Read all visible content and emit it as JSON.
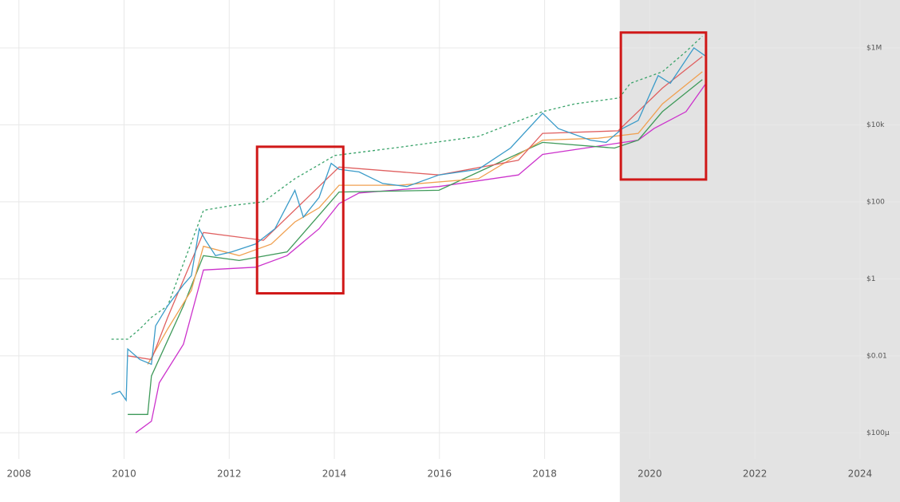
{
  "chart_data": {
    "type": "line",
    "log_y": true,
    "grid": true,
    "xlim": [
      2007.64,
      2024.76
    ],
    "xticks": [
      2008,
      2010,
      2012,
      2014,
      2016,
      2018,
      2020,
      2022,
      2024
    ],
    "ylim": [
      2.1e-05,
      17500000
    ],
    "yticks": [
      {
        "value": 0.0001,
        "label": "$100µ"
      },
      {
        "value": 0.01,
        "label": "$0.01"
      },
      {
        "value": 1,
        "label": "$1"
      },
      {
        "value": 100,
        "label": "$100"
      },
      {
        "value": 10000,
        "label": "$10k"
      },
      {
        "value": 1000000,
        "label": "$1M"
      }
    ],
    "shaded_region": {
      "x": [
        2019.43,
        2024.76
      ],
      "color": "#e3e3e3"
    },
    "highlight_boxes": [
      {
        "x": [
          2012.53,
          2014.17
        ],
        "y": [
          0.42,
          2700
        ],
        "color": "#d01818"
      },
      {
        "x": [
          2019.45,
          2021.07
        ],
        "y": [
          380,
          2500000
        ],
        "color": "#d01818"
      }
    ],
    "series": [
      {
        "color": "#3aa36a",
        "dashed": true,
        "x": [
          2009.76,
          2010.07,
          2010.3,
          2010.52,
          2010.83,
          2011.13,
          2011.51,
          2012.04,
          2012.65,
          2013.25,
          2014.01,
          2015.23,
          2016.74,
          2017.96,
          2018.57,
          2019.42,
          2019.63,
          2020.24,
          2020.69,
          2021.0
        ],
        "values": [
          0.027,
          0.027,
          0.05,
          0.1,
          0.2,
          2.5,
          60,
          80,
          100,
          400,
          1600,
          2600,
          5000,
          22000,
          35000,
          50000,
          120000,
          240000,
          800000,
          2000000
        ]
      },
      {
        "color": "#cc33cc",
        "dashed": false,
        "x": [
          2010.22,
          2010.52,
          2010.67,
          2011.13,
          2011.51,
          2012.5,
          2013.1,
          2013.71,
          2014.09,
          2014.47,
          2015.99,
          2017.5,
          2017.96,
          2019.17,
          2019.78,
          2020.08,
          2020.69,
          2021.07
        ],
        "values": [
          0.0001,
          0.0002,
          0.002,
          0.02,
          1.7,
          2,
          4,
          20,
          90,
          170,
          250,
          500,
          1700,
          3000,
          4000,
          8000,
          22000,
          120000
        ]
      },
      {
        "color": "#3f9a5a",
        "dashed": false,
        "x": [
          2010.07,
          2010.45,
          2010.52,
          2011.13,
          2011.51,
          2012.19,
          2013.1,
          2013.71,
          2014.09,
          2015.99,
          2017.96,
          2019.33,
          2019.78,
          2020.24,
          2021.0
        ],
        "values": [
          0.0003,
          0.0003,
          0.003,
          0.2,
          4,
          3,
          5,
          45,
          180,
          200,
          3500,
          2500,
          4000,
          22000,
          150000
        ]
      },
      {
        "color": "#f0a050",
        "dashed": false,
        "x": [
          2010.45,
          2010.83,
          2011.28,
          2011.51,
          2012.19,
          2012.8,
          2013.25,
          2013.71,
          2014.09,
          2015.23,
          2016.74,
          2017.96,
          2019.02,
          2019.78,
          2020.24,
          2021.0
        ],
        "values": [
          0.006,
          0.05,
          0.5,
          7,
          4,
          8,
          30,
          70,
          270,
          270,
          400,
          4000,
          4500,
          6000,
          35000,
          240000
        ]
      },
      {
        "color": "#e06060",
        "dashed": false,
        "x": [
          2010.07,
          2010.52,
          2010.83,
          2011.51,
          2012.65,
          2014.09,
          2015.99,
          2017.5,
          2017.96,
          2019.4,
          2020.24,
          2021.0
        ],
        "values": [
          0.01,
          0.008,
          0.1,
          16,
          10,
          800,
          500,
          1200,
          6000,
          7000,
          90000,
          600000
        ]
      },
      {
        "color": "#3a9bc9",
        "dashed": false,
        "x": [
          2009.76,
          2009.92,
          2010.04,
          2010.07,
          2010.3,
          2010.52,
          2010.6,
          2010.83,
          2011.13,
          2011.28,
          2011.43,
          2011.55,
          2011.74,
          2012.04,
          2012.5,
          2012.87,
          2013.25,
          2013.41,
          2013.71,
          2013.94,
          2014.09,
          2014.47,
          2014.92,
          2015.38,
          2015.99,
          2016.74,
          2017.35,
          2017.96,
          2018.26,
          2018.87,
          2019.17,
          2019.48,
          2019.78,
          2020.16,
          2020.39,
          2020.84,
          2021.07
        ],
        "values": [
          0.001,
          0.0012,
          0.0007,
          0.015,
          0.008,
          0.006,
          0.06,
          0.2,
          0.7,
          1.2,
          20,
          10,
          4,
          5,
          8,
          20,
          200,
          40,
          130,
          1000,
          700,
          600,
          300,
          250,
          500,
          700,
          2500,
          20000,
          8000,
          4000,
          3500,
          8000,
          13000,
          190000,
          120000,
          1000000,
          600000
        ]
      }
    ]
  }
}
